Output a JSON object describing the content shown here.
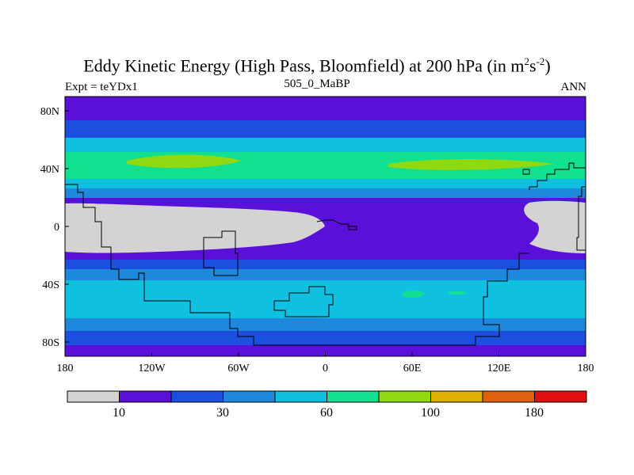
{
  "title": {
    "prefix": "Eddy Kinetic Energy (High Pass, Bloomfield) at 200 hPa (in m",
    "sup1": "2",
    "mid": "s",
    "sup2": "-2",
    "suffix": ")"
  },
  "subtitle": "505_0_MaBP",
  "left_label": "Expt = teYDx1",
  "right_label": "ANN",
  "axes": {
    "x_ticks": [
      "180",
      "120W",
      "60W",
      "0",
      "60E",
      "120E",
      "180"
    ],
    "y_ticks": [
      "80N",
      "40N",
      "0",
      "40S",
      "80S"
    ]
  },
  "colorbar": {
    "colors": [
      "#d3d3d3",
      "#5a10d8",
      "#1a4fe0",
      "#1e88dc",
      "#10c0e0",
      "#10e090",
      "#90d810",
      "#e0b000",
      "#e06010",
      "#e01010"
    ],
    "labels": [
      "10",
      "30",
      "60",
      "100",
      "180"
    ]
  }
}
